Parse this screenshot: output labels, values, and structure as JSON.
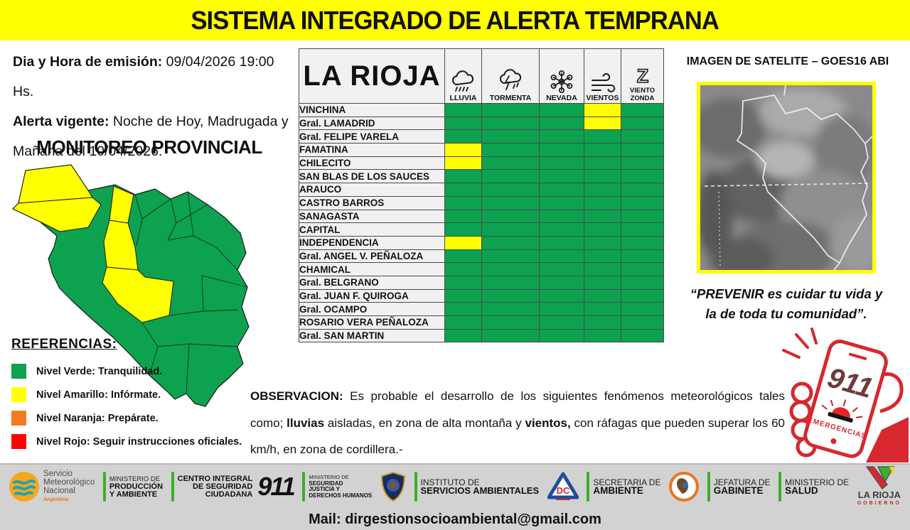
{
  "header": {
    "title": "SISTEMA INTEGRADO DE ALERTA TEMPRANA",
    "background": "#FFFF00"
  },
  "info": {
    "emission_label": "Dia y Hora de emisión:",
    "emission_value": "09/04/2026  19:00 Hs.",
    "alert_label": "Alerta vigente:",
    "alert_line1": "Noche de Hoy, Madrugada y",
    "alert_line2": "Mañana del 10/04/2026.",
    "monitoring_title": "MONITOREO PROVINCIAL"
  },
  "references": {
    "title": "REFERENCIAS:",
    "levels": [
      {
        "color": "#0CA24F",
        "label": "Nivel Verde: Tranquilidad."
      },
      {
        "color": "#FFFF00",
        "label": "Nivel Amarillo: Infórmate."
      },
      {
        "color": "#F47B20",
        "label": "Nivel Naranja: Prepárate."
      },
      {
        "color": "#FF0000",
        "label": "Nivel Rojo: Seguir instrucciones oficiales."
      }
    ]
  },
  "table": {
    "region": "LA RIOJA",
    "columns": [
      {
        "label": "LLUVIA",
        "icon": "rain-cloud-icon"
      },
      {
        "label": "TORMENTA",
        "icon": "storm-cloud-icon"
      },
      {
        "label": "NEVADA",
        "icon": "snowflake-icon"
      },
      {
        "label": "VIENTOS",
        "icon": "wind-icon"
      },
      {
        "label": "VIENTO ZONDA",
        "icon": "zonda-wind-icon"
      }
    ],
    "level_colors": {
      "green": "#0CA24F",
      "yellow": "#FFFF00"
    },
    "rows": [
      {
        "name": "VINCHINA",
        "levels": [
          "green",
          "green",
          "green",
          "yellow",
          "green"
        ]
      },
      {
        "name": "Gral. LAMADRID",
        "levels": [
          "green",
          "green",
          "green",
          "yellow",
          "green"
        ]
      },
      {
        "name": "Gral. FELIPE VARELA",
        "levels": [
          "green",
          "green",
          "green",
          "green",
          "green"
        ]
      },
      {
        "name": "FAMATINA",
        "levels": [
          "yellow",
          "green",
          "green",
          "green",
          "green"
        ]
      },
      {
        "name": "CHILECITO",
        "levels": [
          "yellow",
          "green",
          "green",
          "green",
          "green"
        ]
      },
      {
        "name": "SAN BLAS DE LOS SAUCES",
        "levels": [
          "green",
          "green",
          "green",
          "green",
          "green"
        ]
      },
      {
        "name": "ARAUCO",
        "levels": [
          "green",
          "green",
          "green",
          "green",
          "green"
        ]
      },
      {
        "name": "CASTRO BARROS",
        "levels": [
          "green",
          "green",
          "green",
          "green",
          "green"
        ]
      },
      {
        "name": "SANAGASTA",
        "levels": [
          "green",
          "green",
          "green",
          "green",
          "green"
        ]
      },
      {
        "name": "CAPITAL",
        "levels": [
          "green",
          "green",
          "green",
          "green",
          "green"
        ]
      },
      {
        "name": "INDEPENDENCIA",
        "levels": [
          "yellow",
          "green",
          "green",
          "green",
          "green"
        ]
      },
      {
        "name": "Gral. ANGEL V. PEÑALOZA",
        "levels": [
          "green",
          "green",
          "green",
          "green",
          "green"
        ]
      },
      {
        "name": "CHAMICAL",
        "levels": [
          "green",
          "green",
          "green",
          "green",
          "green"
        ]
      },
      {
        "name": "Gral. BELGRANO",
        "levels": [
          "green",
          "green",
          "green",
          "green",
          "green"
        ]
      },
      {
        "name": "Gral. JUAN F. QUIROGA",
        "levels": [
          "green",
          "green",
          "green",
          "green",
          "green"
        ]
      },
      {
        "name": "Gral. OCAMPO",
        "levels": [
          "green",
          "green",
          "green",
          "green",
          "green"
        ]
      },
      {
        "name": "ROSARIO VERA PEÑALOZA",
        "levels": [
          "green",
          "green",
          "green",
          "green",
          "green"
        ]
      },
      {
        "name": "Gral. SAN MARTIN",
        "levels": [
          "green",
          "green",
          "green",
          "green",
          "green"
        ]
      }
    ]
  },
  "satellite": {
    "title": "IMAGEN DE SATELITE – GOES16 ABI"
  },
  "quote": {
    "line1": "“PREVENIR es cuidar tu vida y",
    "line2": "la de toda tu comunidad”."
  },
  "emergency": {
    "number": "911",
    "label": "EMERGENCIAS"
  },
  "observation": {
    "segments": [
      {
        "t": "OBSERVACION: ",
        "b": true
      },
      {
        "t": "Es probable el desarrollo de los siguientes fenómenos meteorológicos tales como; ",
        "b": false
      },
      {
        "t": "lluvias",
        "b": true
      },
      {
        "t": " aisladas, en zona de alta montaña y ",
        "b": false
      },
      {
        "t": "vientos,",
        "b": true
      },
      {
        "t": " con ráfagas que pueden superar los 60 km/h, en zona de cordillera.-",
        "b": false
      }
    ]
  },
  "footer": {
    "smn": {
      "l1": "Servicio",
      "l2": "Meteorológico",
      "l3": "Nacional",
      "sub": "Argentina"
    },
    "produccion": {
      "l1": "MINISTERIO DE",
      "l2": "PRODUCCIÓN",
      "l3": "Y AMBIENTE"
    },
    "c911": {
      "l1": "CENTRO INTEGRAL",
      "l2": "DE SEGURIDAD",
      "l3": "CIUDADANA",
      "num": "911"
    },
    "justicia": {
      "l1": "MINISTERIO DE",
      "l2": "SEGURIDAD",
      "l3": "JUSTICIA Y",
      "l4": "DERECHOS HUMANOS"
    },
    "isa": {
      "l1": "INSTITUTO DE",
      "l2": "SERVICIOS AMBIENTALES"
    },
    "dc": {
      "text": "DC"
    },
    "ambiente": {
      "l1": "SECRETARIA DE",
      "l2": "AMBIENTE"
    },
    "gabinete": {
      "l1": "JEFATURA DE",
      "l2": "GABINETE"
    },
    "salud": {
      "l1": "MINISTERIO DE",
      "l2": "SALUD"
    },
    "larioja": {
      "l1": "LA RIOJA",
      "l2": "GOBIERNO"
    },
    "mail_label": "Mail:",
    "mail": "dirgestionsocioambiental@gmail.com"
  }
}
